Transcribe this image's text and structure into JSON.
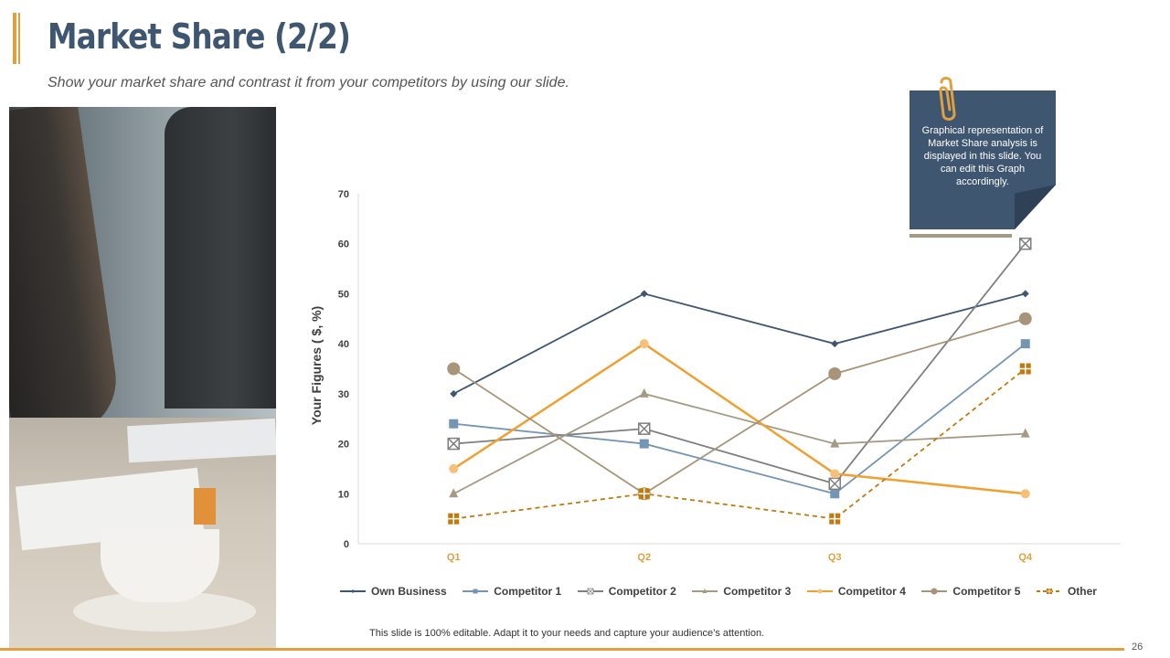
{
  "slide": {
    "title": "Market Share (2/2)",
    "subtitle": "Show your market share and contrast it from your competitors by using our slide.",
    "callout": "Graphical representation of Market Share analysis is displayed in this slide. You can edit this Graph accordingly.",
    "footnote": "This slide is 100% editable. Adapt it to your needs and capture your audience’s attention.",
    "page_number": "26"
  },
  "chart_data": {
    "type": "line",
    "ylabel": "Your Figures (  $, %)",
    "xlabel": "",
    "categories": [
      "Q1",
      "Q2",
      "Q3",
      "Q4"
    ],
    "ylim": [
      0,
      70
    ],
    "yticks": [
      0,
      10,
      20,
      30,
      40,
      50,
      60,
      70
    ],
    "grid": false,
    "legend_position": "bottom",
    "series": [
      {
        "name": "Own Business",
        "values": [
          30,
          50,
          40,
          50
        ],
        "color": "#3f5670",
        "marker": "diamond",
        "dash": false
      },
      {
        "name": "Competitor 1",
        "values": [
          24,
          20,
          10,
          40
        ],
        "color": "#7595b5",
        "marker": "square",
        "dash": false
      },
      {
        "name": "Competitor 2",
        "values": [
          20,
          23,
          12,
          60
        ],
        "color": "#7f7f7f",
        "marker": "xbox",
        "dash": false
      },
      {
        "name": "Competitor 3",
        "values": [
          10,
          30,
          20,
          22
        ],
        "color": "#a59a84",
        "marker": "triangle",
        "dash": false
      },
      {
        "name": "Competitor 4",
        "values": [
          15,
          40,
          14,
          10
        ],
        "color": "#f0a030",
        "marker": "circle-small",
        "dash": false
      },
      {
        "name": "Competitor 5",
        "values": [
          35,
          10,
          34,
          45
        ],
        "color": "#a89579",
        "marker": "circle",
        "dash": false
      },
      {
        "name": "Other",
        "values": [
          5,
          10,
          5,
          35
        ],
        "color": "#c07a10",
        "marker": "plusbox",
        "dash": true
      }
    ]
  }
}
